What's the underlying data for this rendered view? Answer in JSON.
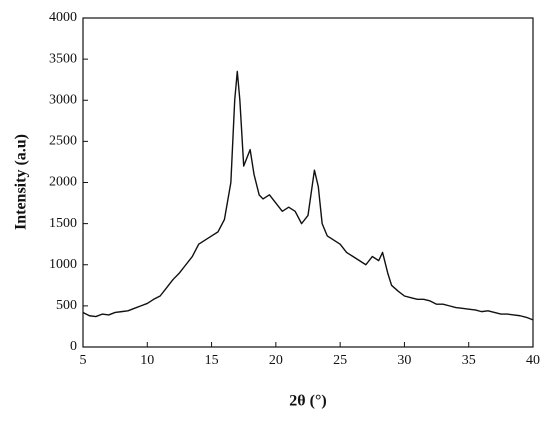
{
  "chart_data": {
    "type": "line",
    "x_label": "2θ (°)",
    "y_label": "Intensity (a.u)",
    "x": [
      5,
      5.5,
      6,
      6.5,
      7,
      7.5,
      8,
      8.5,
      9,
      9.5,
      10,
      10.5,
      11,
      11.5,
      12,
      12.5,
      13,
      13.5,
      14,
      14.5,
      15,
      15.5,
      16,
      16.5,
      16.8,
      17,
      17.2,
      17.5,
      18,
      18.3,
      18.7,
      19,
      19.5,
      20,
      20.5,
      21,
      21.5,
      22,
      22.5,
      23,
      23.3,
      23.6,
      24,
      24.5,
      25,
      25.5,
      26,
      26.5,
      27,
      27.5,
      28,
      28.3,
      28.7,
      29,
      29.5,
      30,
      30.5,
      31,
      31.5,
      32,
      32.5,
      33,
      33.5,
      34,
      34.5,
      35,
      35.5,
      36,
      36.5,
      37,
      37.5,
      38,
      38.5,
      39,
      39.5,
      40
    ],
    "series": [
      {
        "color": "#111111",
        "values": [
          420,
          380,
          370,
          400,
          390,
          420,
          430,
          440,
          470,
          500,
          530,
          580,
          620,
          720,
          820,
          900,
          1000,
          1100,
          1250,
          1300,
          1350,
          1400,
          1550,
          2000,
          3000,
          3350,
          3000,
          2200,
          2400,
          2100,
          1850,
          1800,
          1850,
          1750,
          1650,
          1700,
          1650,
          1500,
          1600,
          2150,
          1950,
          1500,
          1350,
          1300,
          1250,
          1150,
          1100,
          1050,
          1000,
          1100,
          1050,
          1150,
          900,
          750,
          680,
          620,
          600,
          580,
          580,
          560,
          520,
          520,
          500,
          480,
          470,
          460,
          450,
          430,
          440,
          420,
          400,
          400,
          390,
          380,
          360,
          330
        ]
      }
    ],
    "xlim": [
      5,
      40
    ],
    "xticks": [
      5,
      10,
      15,
      20,
      25,
      30,
      35,
      40
    ],
    "ylim": [
      0,
      4000
    ],
    "yticks": [
      0,
      500,
      1000,
      1500,
      2000,
      2500,
      3000,
      3500,
      4000
    ],
    "grid": false
  }
}
